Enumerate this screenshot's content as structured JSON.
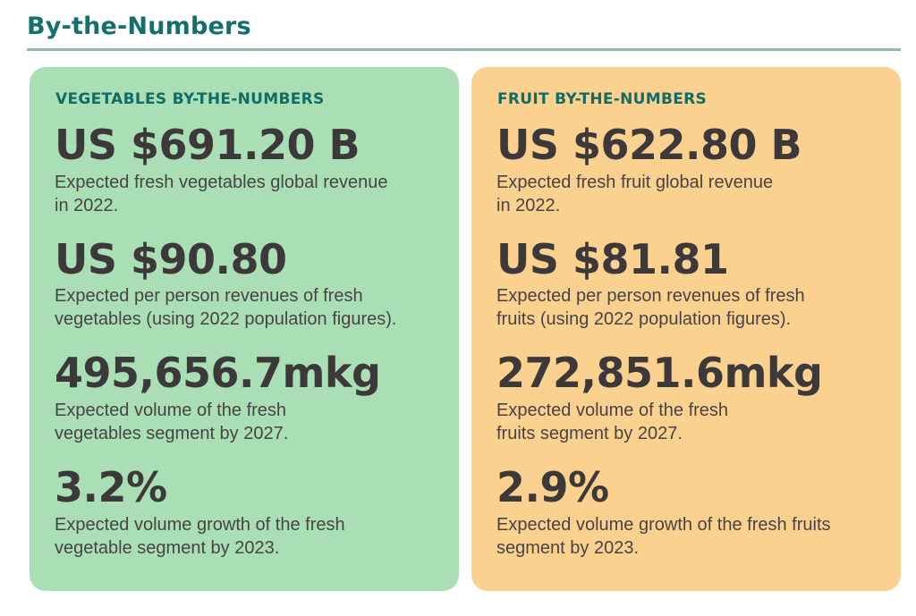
{
  "page": {
    "title": "By-the-Numbers"
  },
  "colors": {
    "title_teal": "#14706c",
    "divider_teal": "#95b6b6",
    "card_heading_teal": "#136b66",
    "stat_number_dark": "#3d383a",
    "description_gray": "#484344",
    "vegetables_card_bg": "#aadfb5",
    "fruit_card_bg": "#fbd190"
  },
  "cards": [
    {
      "heading": "VEGETABLES BY-THE-NUMBERS",
      "stats": [
        {
          "value": "US $691.20 B",
          "desc": "Expected fresh vegetables global revenue\nin 2022."
        },
        {
          "value": "US $90.80",
          "desc": "Expected per person revenues of fresh\nvegetables (using 2022 population figures)."
        },
        {
          "value": "495,656.7mkg",
          "desc": "Expected volume of the fresh\nvegetables segment by 2027."
        },
        {
          "value": "3.2%",
          "desc": "Expected volume growth of the fresh\nvegetable segment by 2023."
        }
      ]
    },
    {
      "heading": "FRUIT BY-THE-NUMBERS",
      "stats": [
        {
          "value": "US $622.80 B",
          "desc": "Expected fresh fruit global revenue\nin 2022."
        },
        {
          "value": "US $81.81",
          "desc": "Expected per person revenues of fresh\nfruits (using 2022 population figures)."
        },
        {
          "value": "272,851.6mkg",
          "desc": "Expected volume of the fresh\nfruits segment by 2027."
        },
        {
          "value": "2.9%",
          "desc": "Expected volume growth of the fresh fruits\nsegment by 2023."
        }
      ]
    }
  ]
}
